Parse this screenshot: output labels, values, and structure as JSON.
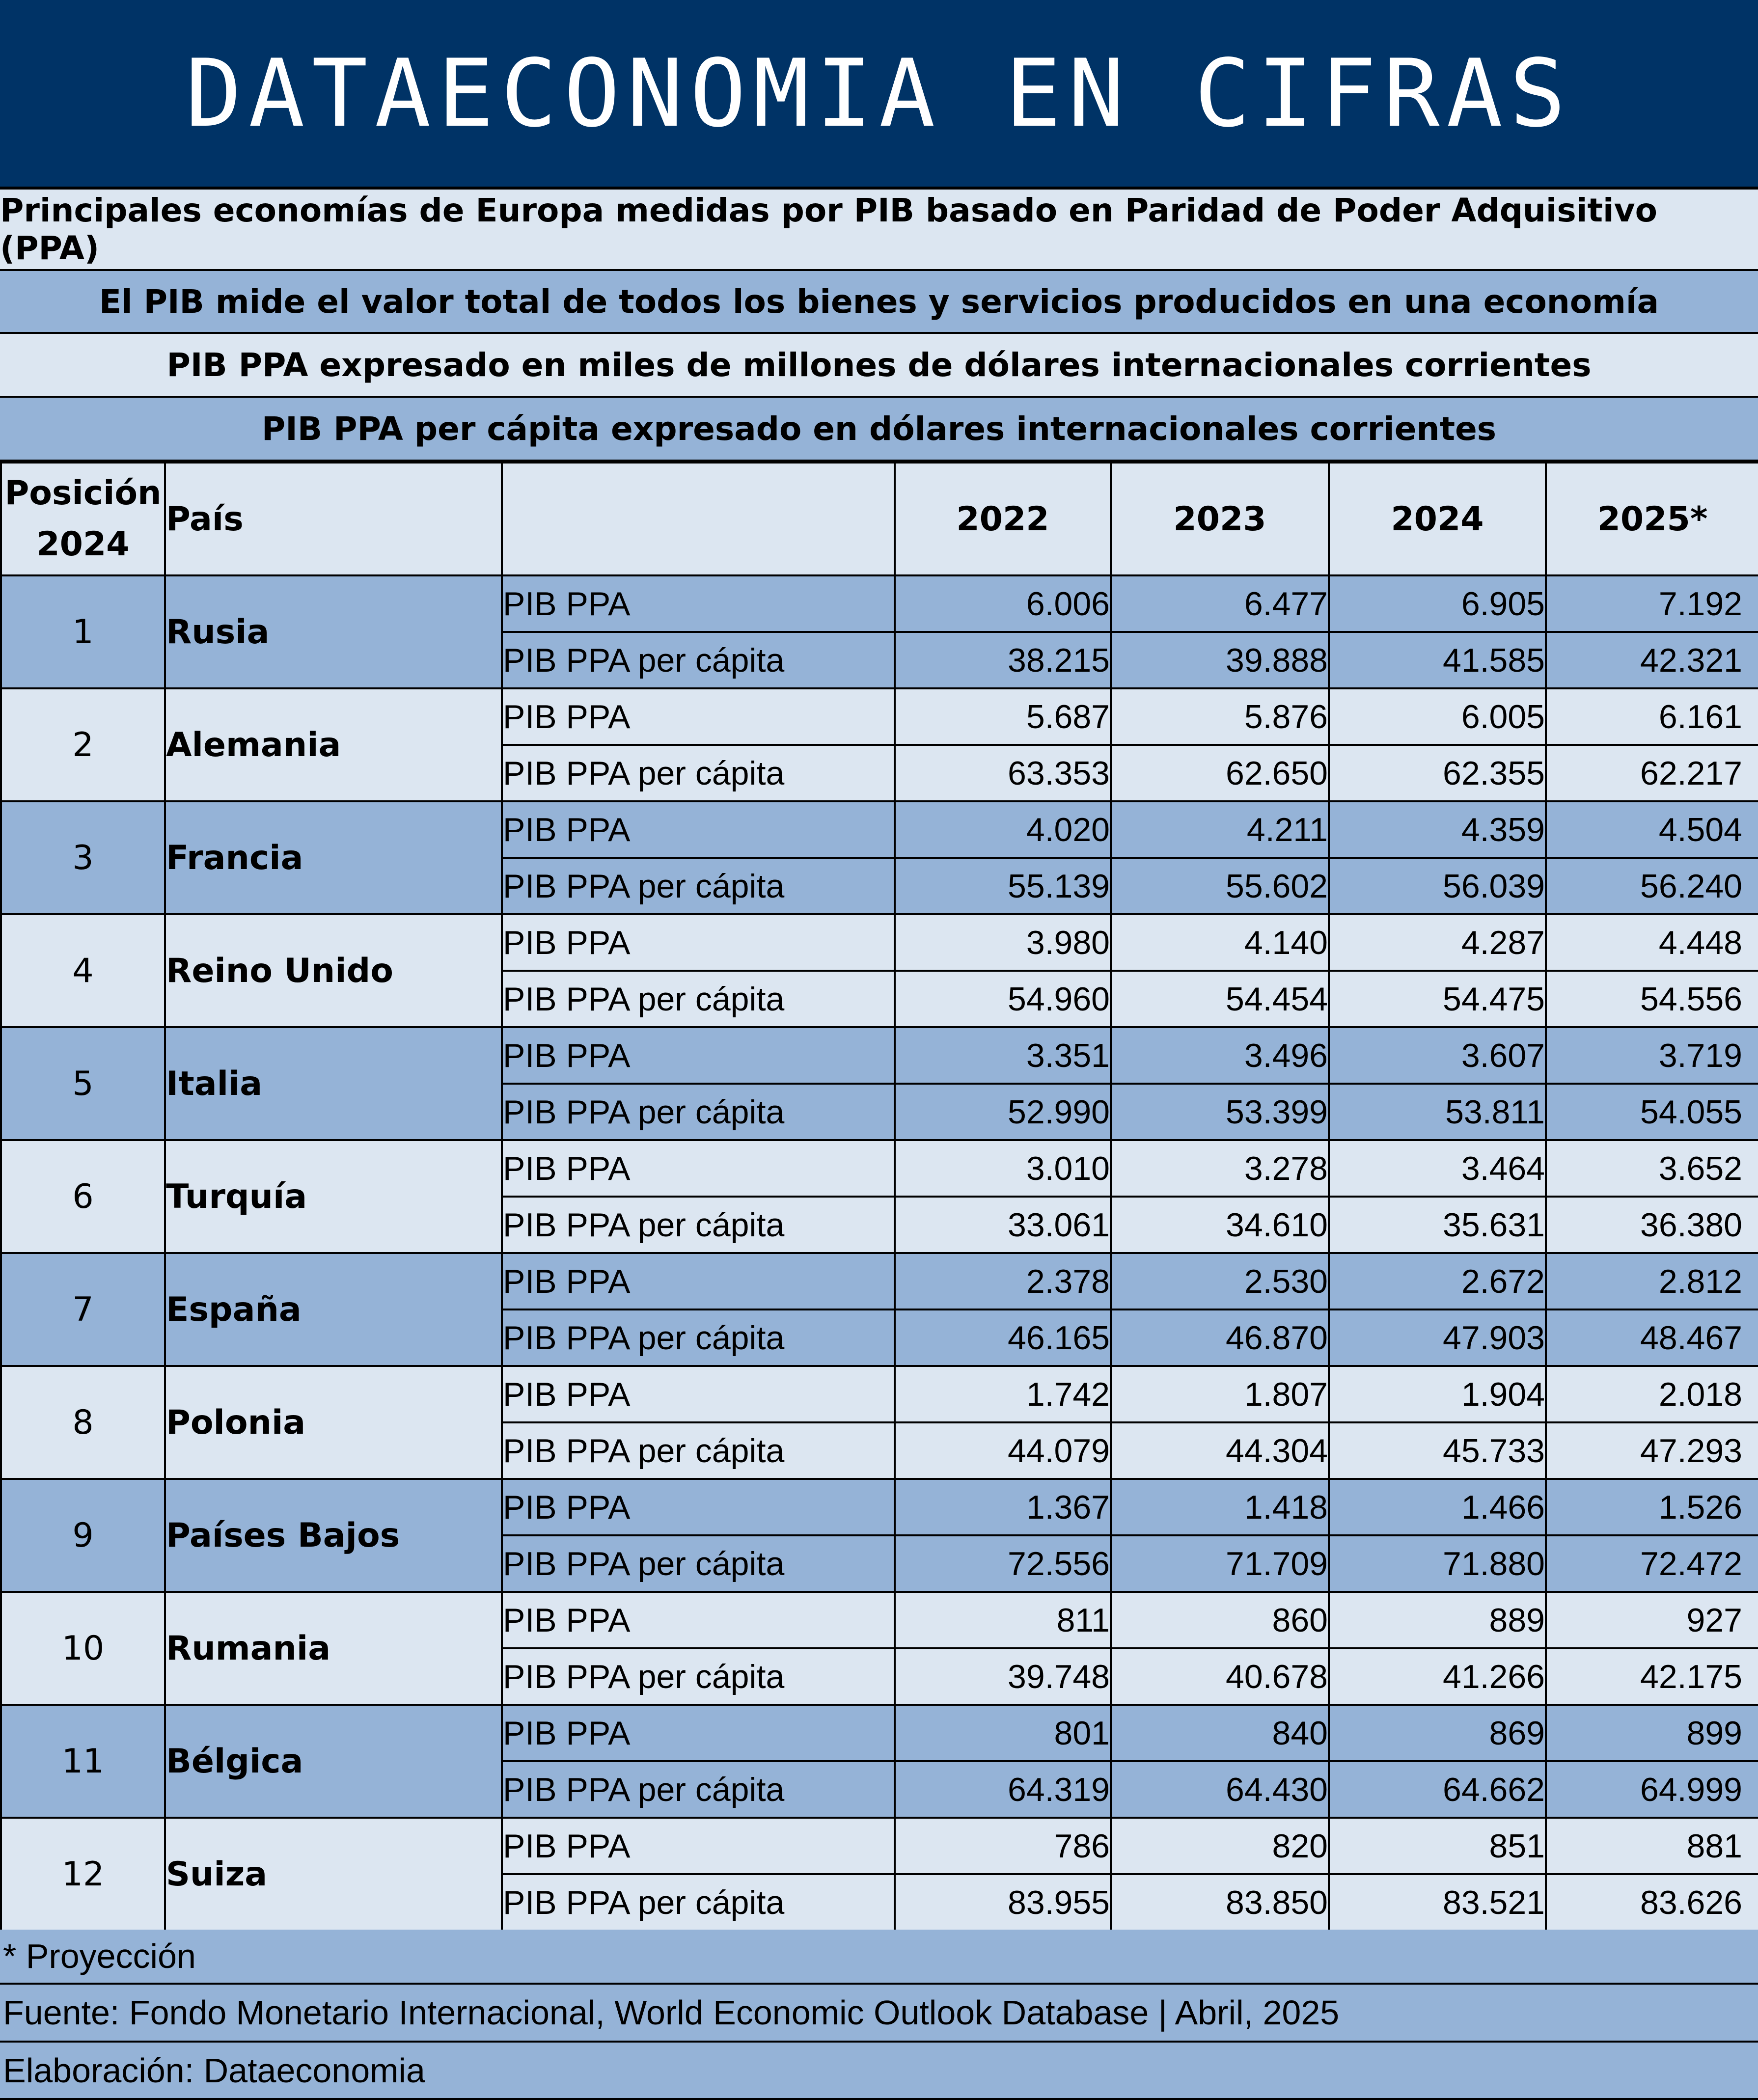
{
  "header": {
    "title": "DATAECONOMIA EN CIFRAS",
    "subtitle1": "Principales economías de Europa medidas por PIB basado en Paridad de Poder Adquisitivo (PPA)",
    "subtitle2": "El PIB mide el valor total de todos los bienes y servicios producidos en una economía",
    "subtitle3": "PIB PPA expresado en miles de millones de dólares internacionales corrientes",
    "subtitle4": "PIB PPA per cápita expresado en dólares internacionales corrientes"
  },
  "table": {
    "col_position_line1": "Posición",
    "col_position_line2": "2024",
    "col_country": "País",
    "years": [
      "2022",
      "2023",
      "2024",
      "2025*"
    ],
    "metric_gdp": "PIB PPA",
    "metric_gdp_pc": "PIB PPA per cápita",
    "rows": [
      {
        "pos": "1",
        "country": "Rusia",
        "gdp": [
          "6.006",
          "6.477",
          "6.905",
          "7.192"
        ],
        "pc": [
          "38.215",
          "39.888",
          "41.585",
          "42.321"
        ]
      },
      {
        "pos": "2",
        "country": "Alemania",
        "gdp": [
          "5.687",
          "5.876",
          "6.005",
          "6.161"
        ],
        "pc": [
          "63.353",
          "62.650",
          "62.355",
          "62.217"
        ]
      },
      {
        "pos": "3",
        "country": "Francia",
        "gdp": [
          "4.020",
          "4.211",
          "4.359",
          "4.504"
        ],
        "pc": [
          "55.139",
          "55.602",
          "56.039",
          "56.240"
        ]
      },
      {
        "pos": "4",
        "country": "Reino Unido",
        "gdp": [
          "3.980",
          "4.140",
          "4.287",
          "4.448"
        ],
        "pc": [
          "54.960",
          "54.454",
          "54.475",
          "54.556"
        ]
      },
      {
        "pos": "5",
        "country": "Italia",
        "gdp": [
          "3.351",
          "3.496",
          "3.607",
          "3.719"
        ],
        "pc": [
          "52.990",
          "53.399",
          "53.811",
          "54.055"
        ]
      },
      {
        "pos": "6",
        "country": "Turquía",
        "gdp": [
          "3.010",
          "3.278",
          "3.464",
          "3.652"
        ],
        "pc": [
          "33.061",
          "34.610",
          "35.631",
          "36.380"
        ]
      },
      {
        "pos": "7",
        "country": "España",
        "gdp": [
          "2.378",
          "2.530",
          "2.672",
          "2.812"
        ],
        "pc": [
          "46.165",
          "46.870",
          "47.903",
          "48.467"
        ]
      },
      {
        "pos": "8",
        "country": "Polonia",
        "gdp": [
          "1.742",
          "1.807",
          "1.904",
          "2.018"
        ],
        "pc": [
          "44.079",
          "44.304",
          "45.733",
          "47.293"
        ]
      },
      {
        "pos": "9",
        "country": "Países Bajos",
        "gdp": [
          "1.367",
          "1.418",
          "1.466",
          "1.526"
        ],
        "pc": [
          "72.556",
          "71.709",
          "71.880",
          "72.472"
        ]
      },
      {
        "pos": "10",
        "country": "Rumania",
        "gdp": [
          "811",
          "860",
          "889",
          "927"
        ],
        "pc": [
          "39.748",
          "40.678",
          "41.266",
          "42.175"
        ]
      },
      {
        "pos": "11",
        "country": "Bélgica",
        "gdp": [
          "801",
          "840",
          "869",
          "899"
        ],
        "pc": [
          "64.319",
          "64.430",
          "64.662",
          "64.999"
        ]
      },
      {
        "pos": "12",
        "country": "Suiza",
        "gdp": [
          "786",
          "820",
          "851",
          "881"
        ],
        "pc": [
          "83.955",
          "83.850",
          "83.521",
          "83.626"
        ]
      }
    ]
  },
  "footer": {
    "note": "* Proyección",
    "source": "Fuente: Fondo Monetario Internacional, World Economic Outlook Database | Abril, 2025",
    "credit": "Elaboración: Dataeconomia"
  },
  "colors": {
    "title_bg": "#003366",
    "band_light": "#DCE6F1",
    "band_blue": "#95B3D7"
  }
}
